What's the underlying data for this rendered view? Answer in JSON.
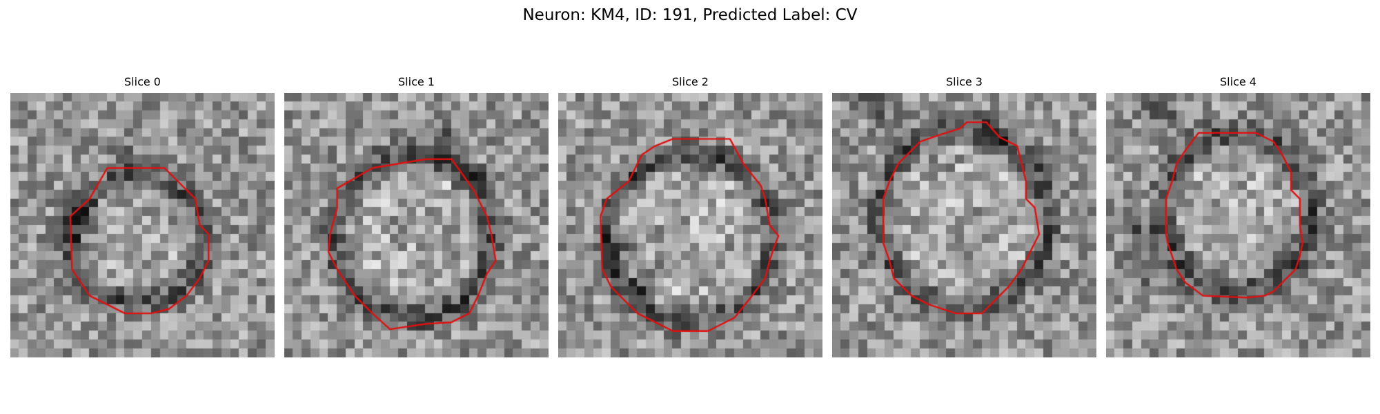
{
  "figure": {
    "title": "Neuron: KM4, ID: 191, Predicted Label: CV"
  },
  "panels": [
    {
      "title": "Slice 0",
      "outline_color": "#e01010"
    },
    {
      "title": "Slice 1",
      "outline_color": "#e01010"
    },
    {
      "title": "Slice 2",
      "outline_color": "#e01010"
    },
    {
      "title": "Slice 3",
      "outline_color": "#e01010"
    },
    {
      "title": "Slice 4",
      "outline_color": "#e01010"
    }
  ]
}
